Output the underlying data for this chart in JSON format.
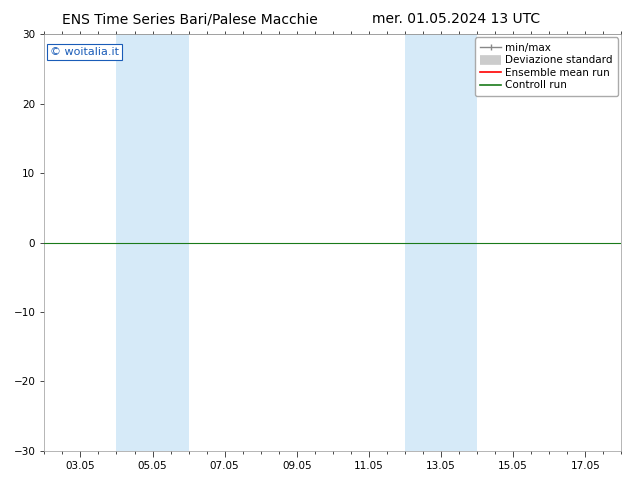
{
  "title_left": "ENS Time Series Bari/Palese Macchie",
  "title_right": "mer. 01.05.2024 13 UTC",
  "watermark": "© woitalia.it",
  "ylim": [
    -30,
    30
  ],
  "yticks": [
    -30,
    -20,
    -10,
    0,
    10,
    20,
    30
  ],
  "xtick_labels": [
    "03.05",
    "05.05",
    "07.05",
    "09.05",
    "11.05",
    "13.05",
    "15.05",
    "17.05"
  ],
  "xtick_positions": [
    1,
    3,
    5,
    7,
    9,
    11,
    13,
    15
  ],
  "x_min": 0,
  "x_max": 16,
  "shaded_bands": [
    {
      "x_start": 2,
      "x_end": 4
    },
    {
      "x_start": 10,
      "x_end": 12
    }
  ],
  "shade_color": "#d6eaf8",
  "hline_y": 0,
  "hline_color": "#1a7a1a",
  "bg_color": "#ffffff",
  "title_fontsize": 10,
  "axis_fontsize": 7.5,
  "legend_fontsize": 7.5,
  "watermark_color": "#1a5cb8",
  "watermark_fontsize": 8
}
